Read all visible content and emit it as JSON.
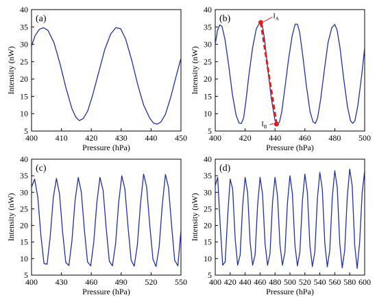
{
  "chart_data": [
    {
      "type": "line",
      "panel_label": "(a)",
      "xlabel": "Pressure (hPa)",
      "ylabel": "Intensity (nW)",
      "xlim": [
        400,
        450
      ],
      "ylim": [
        5,
        40
      ],
      "xticks": [
        400,
        410,
        420,
        430,
        440,
        450
      ],
      "yticks": [
        5,
        10,
        15,
        20,
        25,
        30,
        35,
        40
      ],
      "grid": false,
      "series": [
        {
          "color": "#1f2fa8",
          "x": [
            400,
            401.2,
            402.6,
            404,
            405.5,
            407.5,
            409.5,
            411.5,
            413.5,
            414.8,
            416,
            417.3,
            418.8,
            420.5,
            422.5,
            424.5,
            426.5,
            428.2,
            429.8,
            431.5,
            433.5,
            435.5,
            437.5,
            439.5,
            440.8,
            442,
            443.3,
            444.8,
            446.5,
            448.3,
            450
          ],
          "y": [
            29.5,
            32.5,
            34.3,
            34.8,
            34.0,
            30.5,
            24.5,
            17.5,
            11.5,
            9.0,
            8.0,
            8.6,
            10.8,
            15.5,
            22.0,
            28.5,
            33.0,
            34.8,
            34.5,
            31.5,
            25.5,
            18.5,
            12.5,
            8.8,
            7.3,
            7.0,
            7.6,
            9.8,
            14.5,
            20.5,
            26.0
          ]
        }
      ]
    },
    {
      "type": "line",
      "panel_label": "(b)",
      "xlabel": "Pressure (hPa)",
      "ylabel": "Intensity (nW)",
      "xlim": [
        400,
        500
      ],
      "ylim": [
        5,
        40
      ],
      "xticks": [
        400,
        420,
        440,
        460,
        480,
        500
      ],
      "yticks": [
        5,
        10,
        15,
        20,
        25,
        30,
        35,
        40
      ],
      "grid": false,
      "annotations": [
        {
          "label": "I",
          "subscript": "A",
          "x": 430.5,
          "y": 36.3
        },
        {
          "label": "I",
          "subscript": "B",
          "x": 441,
          "y": 7.0
        }
      ],
      "series": [
        {
          "color": "#1f2fa8",
          "x": [
            400,
            401.5,
            403,
            404.5,
            406.5,
            409,
            411.5,
            414,
            416,
            417.5,
            419,
            420.5,
            422.5,
            425,
            427.5,
            430,
            431.5,
            433,
            435,
            437.5,
            440,
            441.5,
            443,
            444.5,
            446.5,
            449,
            451.5,
            453.5,
            455,
            456.5,
            458.5,
            461,
            463.5,
            465.5,
            467,
            468.5,
            470.5,
            473,
            475.5,
            478,
            480,
            481.5,
            483.5,
            486,
            488.5,
            490.5,
            492,
            493.5,
            495.5,
            498,
            500
          ],
          "y": [
            30,
            34,
            35.6,
            35.2,
            31.5,
            24,
            15.5,
            9.5,
            7.3,
            7.2,
            8.8,
            13.5,
            21,
            29,
            34.5,
            36.3,
            35.5,
            31.5,
            23.5,
            14.5,
            8.0,
            7.1,
            7.6,
            10.5,
            17,
            25.5,
            32.5,
            35.8,
            35.8,
            33.5,
            27,
            18,
            10.5,
            7.6,
            7.2,
            8.8,
            14,
            22.5,
            30.5,
            34.8,
            35.7,
            34.2,
            29,
            20,
            12,
            8.0,
            7.2,
            8.0,
            12.5,
            21,
            29
          ]
        },
        {
          "color": "#e11b1b",
          "x": [
            430.5,
            441
          ],
          "y": [
            36.3,
            7.0
          ]
        }
      ]
    },
    {
      "type": "line",
      "panel_label": "(c)",
      "xlabel": "Pressure (hPa)",
      "ylabel": "Intensity (nW)",
      "xlim": [
        400,
        550
      ],
      "ylim": [
        5,
        40
      ],
      "xticks": [
        400,
        430,
        460,
        490,
        520,
        550
      ],
      "yticks": [
        5,
        10,
        15,
        20,
        25,
        30,
        35,
        40
      ],
      "grid": false,
      "series": [
        {
          "color": "#1f2fa8",
          "x": [
            400,
            403.1,
            406.3,
            409.4,
            412.5,
            415.6,
            418.7,
            421.9,
            425,
            428.1,
            431.2,
            434.4,
            437.5,
            440.6,
            443.7,
            446.9,
            450,
            453.1,
            456.2,
            459.4,
            462.5,
            465.6,
            468.7,
            471.9,
            475,
            478.1,
            481.2,
            484.4,
            487.5,
            490.6,
            493.7,
            496.9,
            500,
            503.1,
            506.2,
            509.4,
            512.5,
            515.6,
            518.7,
            521.9,
            525,
            528.1,
            531.2,
            534.4,
            537.5,
            540.6,
            543.7,
            546.9,
            550
          ],
          "y": [
            31.5,
            34,
            28.5,
            17,
            8.5,
            8.3,
            16.5,
            28.5,
            34.2,
            29.5,
            18,
            8.8,
            7.9,
            15.5,
            27.5,
            34.5,
            30,
            18.5,
            9,
            7.8,
            15,
            27,
            34.5,
            30.5,
            19,
            9.2,
            7.8,
            14.5,
            27,
            35,
            31,
            19.5,
            9.5,
            7.7,
            14,
            26.5,
            35.5,
            31.5,
            20,
            9.8,
            7.6,
            13.5,
            26,
            35.4,
            31.5,
            20,
            9.5,
            7.8,
            18.5
          ]
        }
      ]
    },
    {
      "type": "line",
      "panel_label": "(d)",
      "xlabel": "Pressure (hPa)",
      "ylabel": "Intensity (nW)",
      "xlim": [
        400,
        600
      ],
      "ylim": [
        5,
        40
      ],
      "xticks": [
        400,
        420,
        440,
        460,
        480,
        500,
        520,
        540,
        560,
        580,
        600
      ],
      "yticks": [
        5,
        10,
        15,
        20,
        25,
        30,
        35,
        40
      ],
      "grid": false,
      "series": [
        {
          "color": "#1f2fa8",
          "x": [
            400,
            403.3,
            406.7,
            410,
            413.3,
            416.7,
            420,
            423.3,
            426.7,
            430,
            433.3,
            436.7,
            440,
            443.3,
            446.7,
            450,
            453.3,
            456.7,
            460,
            463.3,
            466.7,
            470,
            473.3,
            476.7,
            480,
            483.3,
            486.7,
            490,
            493.3,
            496.7,
            500,
            503.3,
            506.7,
            510,
            513.3,
            516.7,
            520,
            523.3,
            526.7,
            530,
            533.3,
            536.7,
            540,
            543.3,
            546.7,
            550,
            553.3,
            556.7,
            560,
            563.3,
            566.7,
            570,
            573.3,
            576.7,
            580,
            583.3,
            586.7,
            590,
            593.3,
            596.7,
            600
          ],
          "y": [
            32,
            34.5,
            20,
            8.0,
            9,
            23,
            34,
            31,
            16,
            8.0,
            11,
            26,
            34.5,
            30,
            15,
            8.0,
            11,
            26,
            34.5,
            29.5,
            14.5,
            8.0,
            11.5,
            27,
            34.5,
            29,
            14,
            8.0,
            12,
            27,
            35,
            29.5,
            14,
            7.8,
            12,
            27.5,
            35.5,
            30,
            14,
            7.6,
            12,
            28,
            36,
            31,
            14.5,
            7.5,
            12.5,
            28.5,
            36.5,
            31.5,
            14.5,
            7.2,
            12.5,
            28.5,
            37,
            32,
            14,
            7.0,
            15,
            30,
            36.5
          ]
        }
      ]
    }
  ]
}
